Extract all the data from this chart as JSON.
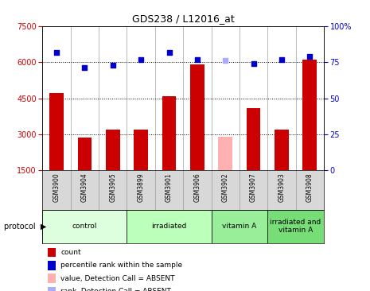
{
  "title": "GDS238 / L12016_at",
  "samples": [
    "GSM3900",
    "GSM3904",
    "GSM3905",
    "GSM3899",
    "GSM3901",
    "GSM3906",
    "GSM3902",
    "GSM3907",
    "GSM3903",
    "GSM3908"
  ],
  "counts": [
    4700,
    2850,
    3200,
    3200,
    4600,
    5900,
    null,
    4100,
    3200,
    6100
  ],
  "counts_absent": [
    null,
    null,
    null,
    null,
    null,
    null,
    2900,
    null,
    null,
    null
  ],
  "rank_pct": [
    82,
    71,
    73,
    77,
    82,
    77,
    null,
    74,
    77,
    79
  ],
  "rank_pct_absent": [
    null,
    null,
    null,
    null,
    null,
    null,
    76,
    null,
    null,
    null
  ],
  "ylim_left": [
    1500,
    7500
  ],
  "ylim_right": [
    0,
    100
  ],
  "yticks_left": [
    1500,
    3000,
    4500,
    6000,
    7500
  ],
  "yticks_right": [
    0,
    25,
    50,
    75,
    100
  ],
  "hlines": [
    3000,
    4500,
    6000
  ],
  "bar_color": "#cc0000",
  "bar_absent_color": "#ffb0b0",
  "dot_color": "#0000cc",
  "dot_absent_color": "#aaaaff",
  "groups": [
    {
      "label": "control",
      "start": 0,
      "end": 3,
      "color": "#ddffdd"
    },
    {
      "label": "irradiated",
      "start": 3,
      "end": 6,
      "color": "#bbffbb"
    },
    {
      "label": "vitamin A",
      "start": 6,
      "end": 8,
      "color": "#99ee99"
    },
    {
      "label": "irradiated and\nvitamin A",
      "start": 8,
      "end": 10,
      "color": "#77dd77"
    }
  ],
  "legend_items": [
    {
      "label": "count",
      "color": "#cc0000"
    },
    {
      "label": "percentile rank within the sample",
      "color": "#0000cc"
    },
    {
      "label": "value, Detection Call = ABSENT",
      "color": "#ffb0b0"
    },
    {
      "label": "rank, Detection Call = ABSENT",
      "color": "#aaaaff"
    }
  ],
  "bar_width": 0.5
}
